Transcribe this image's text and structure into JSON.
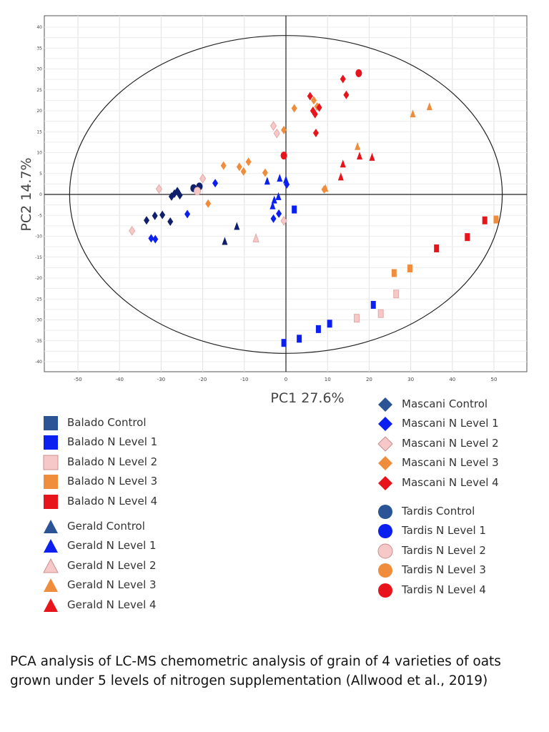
{
  "caption": "PCA analysis of LC-MS chemometric analysis of grain of 4 varieties of oats grown under 5 levels of nitrogen supplementation (Allwood et al., 2019)",
  "colors": {
    "Control": "#2b5496",
    "N Level 1": "#0a1ff0",
    "N Level 2": "#f6c8c8",
    "N Level 3": "#f08d3c",
    "N Level 4": "#e8141c",
    "Control dark": "#0f1f6b"
  },
  "legend": {
    "left": [
      {
        "label": "Balado Control",
        "shape": "square",
        "level": "Control"
      },
      {
        "label": "Balado N Level 1",
        "shape": "square",
        "level": "N Level 1"
      },
      {
        "label": "Balado N Level 2",
        "shape": "square",
        "level": "N Level 2"
      },
      {
        "label": "Balado N Level 3",
        "shape": "square",
        "level": "N Level 3"
      },
      {
        "label": "Balado N Level 4",
        "shape": "square",
        "level": "N Level 4"
      },
      {
        "label": "Gerald Control",
        "shape": "triangle",
        "level": "Control"
      },
      {
        "label": "Gerald N Level 1",
        "shape": "triangle",
        "level": "N Level 1"
      },
      {
        "label": "Gerald N Level 2",
        "shape": "triangle",
        "level": "N Level 2"
      },
      {
        "label": "Gerald N Level 3",
        "shape": "triangle",
        "level": "N Level 3"
      },
      {
        "label": "Gerald N Level 4",
        "shape": "triangle",
        "level": "N Level 4"
      }
    ],
    "right_a": [
      {
        "label": "Mascani Control",
        "shape": "diamond",
        "level": "Control"
      },
      {
        "label": "Mascani N Level 1",
        "shape": "diamond",
        "level": "N Level 1"
      },
      {
        "label": "Mascani N Level 2",
        "shape": "diamond",
        "level": "N Level 2"
      },
      {
        "label": "Mascani N Level 3",
        "shape": "diamond",
        "level": "N Level 3"
      },
      {
        "label": "Mascani N Level 4",
        "shape": "diamond",
        "level": "N Level 4"
      }
    ],
    "right_b": [
      {
        "label": "Tardis Control",
        "shape": "circle",
        "level": "Control"
      },
      {
        "label": "Tardis N Level 1",
        "shape": "circle",
        "level": "N Level 1"
      },
      {
        "label": "Tardis N Level 2",
        "shape": "circle",
        "level": "N Level 2"
      },
      {
        "label": "Tardis N Level 3",
        "shape": "circle",
        "level": "N Level 3"
      },
      {
        "label": "Tardis N Level 4",
        "shape": "circle",
        "level": "N Level 4"
      }
    ]
  },
  "chart_data": {
    "type": "scatter",
    "xlabel": "PC1 27.6%",
    "ylabel": "PC2 14.7%",
    "xlim": [
      -55,
      55
    ],
    "ylim": [
      -41,
      41
    ],
    "x_ticks": [
      -50,
      -40,
      -30,
      -20,
      -10,
      0,
      10,
      20,
      30,
      40,
      50
    ],
    "y_ticks": [
      40,
      35,
      30,
      25,
      20,
      15,
      10,
      5,
      0,
      -5,
      -10,
      -15,
      -20,
      -25,
      -30,
      -35,
      -40
    ],
    "grid": true,
    "confidence_ellipse": {
      "cx": 0,
      "cy": 0,
      "rx": 52,
      "ry": 38
    },
    "legend_position": "below",
    "series": [
      {
        "name": "Balado Control",
        "shape": "square",
        "color": "#2b5496",
        "points": []
      },
      {
        "name": "Balado N Level 1",
        "shape": "square",
        "color": "#0a1ff0",
        "points": [
          [
            -0.5,
            -35.5
          ],
          [
            3.2,
            -34.5
          ],
          [
            7.8,
            -32.2
          ],
          [
            10.5,
            -30.9
          ],
          [
            2,
            -3.6
          ],
          [
            21,
            -26.4
          ]
        ]
      },
      {
        "name": "Balado N Level 2",
        "shape": "square",
        "color": "#f6c8c8",
        "points": [
          [
            17,
            -29.6
          ],
          [
            22.8,
            -28.5
          ],
          [
            26.5,
            -23.8
          ]
        ]
      },
      {
        "name": "Balado N Level 3",
        "shape": "square",
        "color": "#f08d3c",
        "points": [
          [
            26,
            -18.8
          ],
          [
            29.8,
            -17.7
          ],
          [
            50.5,
            -6
          ]
        ]
      },
      {
        "name": "Balado N Level 4",
        "shape": "square",
        "color": "#e8141c",
        "points": [
          [
            36.2,
            -12.9
          ],
          [
            43.6,
            -10.2
          ],
          [
            47.8,
            -6.2
          ]
        ]
      },
      {
        "name": "Gerald Control",
        "shape": "triangle",
        "color": "#0f1f6b",
        "points": [
          [
            -14.7,
            -11.2
          ],
          [
            -11.8,
            -7.6
          ]
        ]
      },
      {
        "name": "Gerald N Level 1",
        "shape": "triangle",
        "color": "#0a1ff0",
        "points": [
          [
            -4.5,
            3.2
          ],
          [
            -1.5,
            3.9
          ],
          [
            0,
            3.5
          ],
          [
            -2.8,
            -1.3
          ],
          [
            -3.2,
            -2.7
          ],
          [
            -1.8,
            -0.5
          ]
        ]
      },
      {
        "name": "Gerald N Level 2",
        "shape": "triangle",
        "color": "#f6c8c8",
        "points": [
          [
            -7.2,
            -10.5
          ]
        ]
      },
      {
        "name": "Gerald N Level 3",
        "shape": "triangle",
        "color": "#f08d3c",
        "points": [
          [
            9.5,
            1.5
          ],
          [
            17.2,
            11.5
          ],
          [
            30.5,
            19.3
          ],
          [
            34.5,
            21
          ]
        ]
      },
      {
        "name": "Gerald N Level 4",
        "shape": "triangle",
        "color": "#e8141c",
        "points": [
          [
            13.2,
            4.2
          ],
          [
            13.7,
            7.3
          ],
          [
            17.7,
            9.2
          ],
          [
            20.7,
            8.9
          ]
        ]
      },
      {
        "name": "Mascani Control",
        "shape": "diamond",
        "color": "#0f1f6b",
        "points": [
          [
            -27.5,
            -0.5
          ],
          [
            -26.8,
            0.2
          ],
          [
            -26.1,
            0.8
          ],
          [
            -25.5,
            -0.2
          ],
          [
            -27.8,
            -6.5
          ],
          [
            -29.7,
            -4.9
          ],
          [
            -31.5,
            -5.1
          ],
          [
            -33.5,
            -6.2
          ]
        ]
      },
      {
        "name": "Mascani N Level 1",
        "shape": "diamond",
        "color": "#0a1ff0",
        "points": [
          [
            -32.4,
            -10.5
          ],
          [
            -31.4,
            -10.7
          ],
          [
            -23.7,
            -4.7
          ],
          [
            -17,
            2.7
          ],
          [
            -1.7,
            -4.6
          ],
          [
            -3,
            -5.8
          ],
          [
            0.2,
            2.4
          ]
        ]
      },
      {
        "name": "Mascani N Level 2",
        "shape": "diamond",
        "color": "#f6c8c8",
        "points": [
          [
            -37,
            -8.7
          ],
          [
            -30.5,
            1.3
          ],
          [
            -20,
            3.8
          ],
          [
            -3,
            16.4
          ],
          [
            -2.2,
            14.6
          ],
          [
            -0.5,
            -6.3
          ]
        ]
      },
      {
        "name": "Mascani N Level 3",
        "shape": "diamond",
        "color": "#f08d3c",
        "points": [
          [
            -15,
            6.9
          ],
          [
            -11.2,
            6.6
          ],
          [
            -10.2,
            5.5
          ],
          [
            -9,
            7.8
          ],
          [
            -5,
            5.2
          ],
          [
            -0.5,
            15.4
          ],
          [
            2,
            20.6
          ],
          [
            6.7,
            22.5
          ],
          [
            7.5,
            21
          ],
          [
            9.2,
            1.2
          ],
          [
            -18.7,
            -2.2
          ]
        ]
      },
      {
        "name": "Mascani N Level 4",
        "shape": "diamond",
        "color": "#e8141c",
        "points": [
          [
            13.7,
            27.6
          ],
          [
            14.5,
            23.8
          ],
          [
            5.8,
            23.5
          ],
          [
            6.5,
            20
          ],
          [
            8,
            20.8
          ],
          [
            7,
            19.2
          ],
          [
            7.2,
            14.7
          ]
        ]
      },
      {
        "name": "Tardis Control",
        "shape": "circle",
        "color": "#0f1f6b",
        "points": [
          [
            -22.2,
            1.5
          ],
          [
            -20.8,
            1.9
          ]
        ]
      },
      {
        "name": "Tardis N Level 1",
        "shape": "circle",
        "color": "#0a1ff0",
        "points": []
      },
      {
        "name": "Tardis N Level 2",
        "shape": "circle",
        "color": "#f6c8c8",
        "points": [
          [
            -21.3,
            0.8
          ]
        ]
      },
      {
        "name": "Tardis N Level 3",
        "shape": "circle",
        "color": "#f08d3c",
        "points": []
      },
      {
        "name": "Tardis N Level 4",
        "shape": "circle",
        "color": "#e8141c",
        "points": [
          [
            17.5,
            29
          ],
          [
            -0.5,
            9.3
          ]
        ]
      }
    ]
  }
}
